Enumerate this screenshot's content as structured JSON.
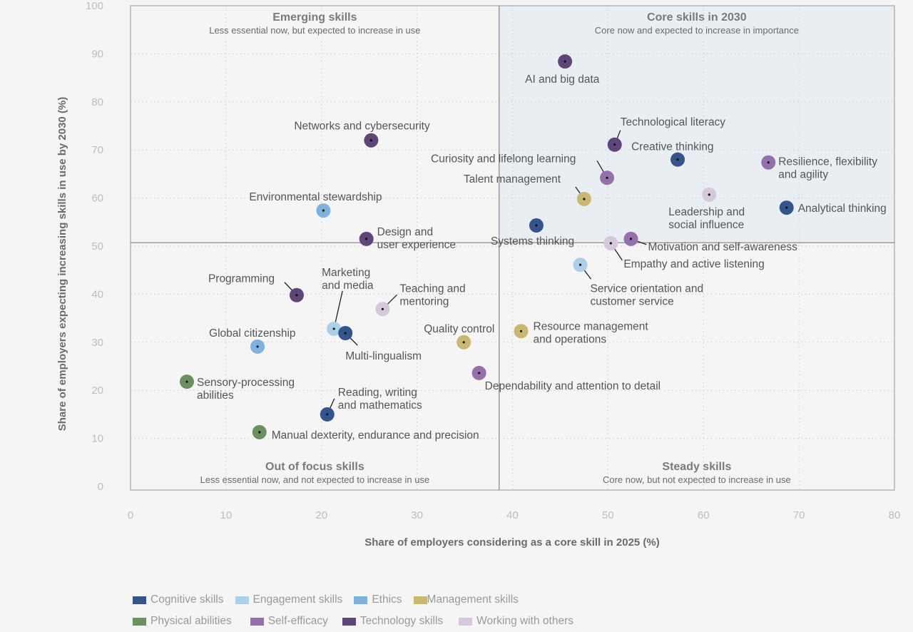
{
  "chart_data": {
    "type": "scatter",
    "xlabel": "Share of employers considering as a core skill in 2025 (%)",
    "ylabel": "Share of employers expecting increasing skills in use by 2030 (%)",
    "xlim": [
      0,
      80
    ],
    "ylim": [
      0,
      100
    ],
    "xticks": [
      0,
      10,
      20,
      30,
      40,
      50,
      60,
      70,
      80
    ],
    "yticks": [
      0,
      10,
      20,
      30,
      40,
      50,
      60,
      70,
      80,
      90,
      100
    ],
    "grid": true,
    "divider_x": 38.6,
    "divider_y": 50.7,
    "quadrants": [
      {
        "id": "emerging",
        "title": "Emerging skills",
        "subtitle": "Less essential now, but expected to increase in use",
        "position": "top-left"
      },
      {
        "id": "core",
        "title": "Core skills in 2030",
        "subtitle": "Core now and expected to increase in importance",
        "position": "top-right",
        "shaded": true
      },
      {
        "id": "out-of-focus",
        "title": "Out of focus skills",
        "subtitle": "Less essential now, and not expected to increase in use",
        "position": "bottom-left"
      },
      {
        "id": "steady",
        "title": "Steady skills",
        "subtitle": "Core now, but not expected to increase in use",
        "position": "bottom-right"
      }
    ],
    "categories": [
      {
        "name": "Cognitive skills",
        "color": "#34558b"
      },
      {
        "name": "Engagement skills",
        "color": "#acd0e8"
      },
      {
        "name": "Ethics",
        "color": "#7eb1dc"
      },
      {
        "name": "Management skills",
        "color": "#c9b86e"
      },
      {
        "name": "Physical abilities",
        "color": "#6b8f5e"
      },
      {
        "name": "Self-efficacy",
        "color": "#9670ad"
      },
      {
        "name": "Technology skills",
        "color": "#5e4678"
      },
      {
        "name": "Working with others",
        "color": "#d5c8dd"
      }
    ],
    "points": [
      {
        "label": "AI and big data",
        "category": "Technology skills",
        "x": 45.5,
        "y": 88.4
      },
      {
        "label": "Networks and cybersecurity",
        "category": "Technology skills",
        "x": 25.2,
        "y": 72.0
      },
      {
        "label": "Technological literacy",
        "category": "Technology skills",
        "x": 50.7,
        "y": 71.1
      },
      {
        "label": "Creative thinking",
        "category": "Cognitive skills",
        "x": 57.3,
        "y": 68.0
      },
      {
        "label": "Resilience, flexibility and agility",
        "category": "Self-efficacy",
        "x": 66.8,
        "y": 67.4
      },
      {
        "label": "Curiosity and lifelong learning",
        "category": "Self-efficacy",
        "x": 49.9,
        "y": 64.2
      },
      {
        "label": "Talent management",
        "category": "Management skills",
        "x": 47.5,
        "y": 59.8
      },
      {
        "label": "Leadership and social influence",
        "category": "Working with others",
        "x": 60.6,
        "y": 60.7
      },
      {
        "label": "Analytical thinking",
        "category": "Cognitive skills",
        "x": 68.7,
        "y": 58.0
      },
      {
        "label": "Environmental stewardship",
        "category": "Ethics",
        "x": 20.2,
        "y": 57.4
      },
      {
        "label": "Systems thinking",
        "category": "Cognitive skills",
        "x": 42.5,
        "y": 54.3
      },
      {
        "label": "Design and user experience",
        "category": "Technology skills",
        "x": 24.7,
        "y": 51.5
      },
      {
        "label": "Motivation and self-awareness",
        "category": "Self-efficacy",
        "x": 52.4,
        "y": 51.5
      },
      {
        "label": "Empathy and active listening",
        "category": "Working with others",
        "x": 50.3,
        "y": 50.6
      },
      {
        "label": "Service orientation and customer service",
        "category": "Engagement skills",
        "x": 47.1,
        "y": 46.1
      },
      {
        "label": "Programming",
        "category": "Technology skills",
        "x": 17.4,
        "y": 39.8
      },
      {
        "label": "Teaching and mentoring",
        "category": "Working with others",
        "x": 26.4,
        "y": 36.9
      },
      {
        "label": "Marketing and media",
        "category": "Engagement skills",
        "x": 21.3,
        "y": 32.8
      },
      {
        "label": "Multi-lingualism",
        "category": "Cognitive skills",
        "x": 22.5,
        "y": 31.9
      },
      {
        "label": "Resource management and operations",
        "category": "Management skills",
        "x": 40.9,
        "y": 32.3
      },
      {
        "label": "Quality control",
        "category": "Management skills",
        "x": 34.9,
        "y": 30.0
      },
      {
        "label": "Global citizenship",
        "category": "Ethics",
        "x": 13.3,
        "y": 29.1
      },
      {
        "label": "Dependability and attention to detail",
        "category": "Self-efficacy",
        "x": 36.5,
        "y": 23.6
      },
      {
        "label": "Sensory-processing abilities",
        "category": "Physical abilities",
        "x": 5.9,
        "y": 21.8
      },
      {
        "label": "Reading, writing and mathematics",
        "category": "Cognitive skills",
        "x": 20.6,
        "y": 15.0
      },
      {
        "label": "Manual dexterity, endurance and precision",
        "category": "Physical abilities",
        "x": 13.5,
        "y": 11.3
      }
    ]
  }
}
